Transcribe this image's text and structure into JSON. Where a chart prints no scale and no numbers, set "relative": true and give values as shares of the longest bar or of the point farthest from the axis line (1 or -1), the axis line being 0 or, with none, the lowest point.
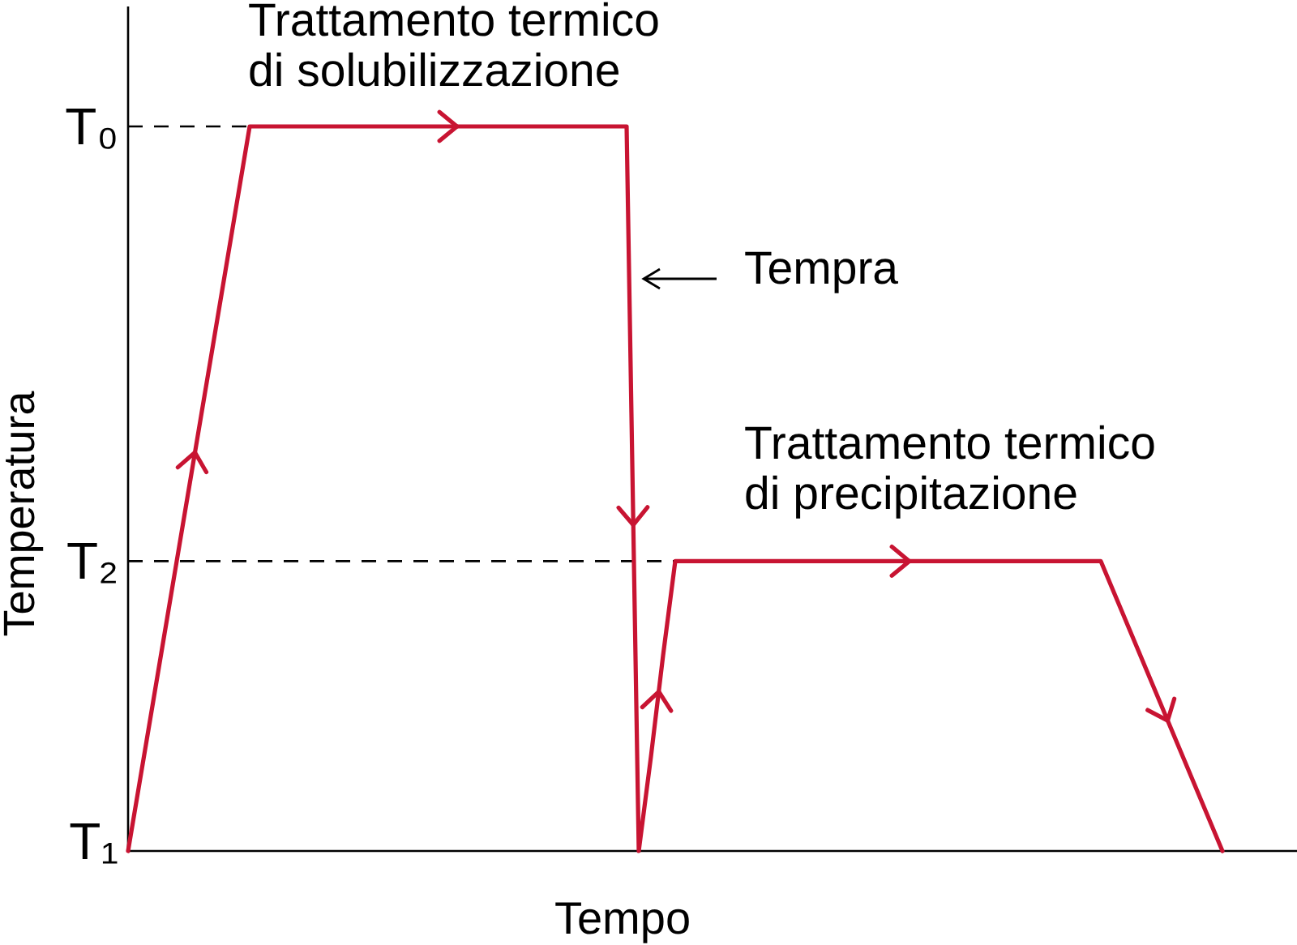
{
  "chart_data": {
    "type": "line",
    "xlabel": "Tempo",
    "ylabel": "Temperatura",
    "relative": true,
    "categories": [
      null,
      null,
      null,
      null,
      null,
      null,
      null,
      null,
      null,
      null,
      null,
      null,
      null,
      null,
      null,
      null,
      null,
      null,
      null,
      null,
      null,
      null,
      null,
      null,
      null,
      null,
      null,
      null,
      null,
      null,
      null,
      null,
      null,
      null,
      null,
      null,
      null,
      null,
      null,
      null,
      null,
      null,
      null,
      null,
      null,
      null,
      null,
      null,
      null,
      null,
      null,
      null,
      null,
      null,
      null,
      null,
      null,
      null,
      null,
      null,
      null,
      null,
      null,
      null,
      null,
      null,
      null,
      null,
      null,
      null,
      null,
      null,
      null,
      null,
      null,
      null,
      null,
      null,
      null,
      null,
      null,
      null,
      null,
      null,
      null,
      null,
      null,
      null,
      null,
      null,
      null
    ],
    "series": [
      {
        "color": "#c81432",
        "values": [
          0,
          0.1,
          0.2,
          0.3,
          0.4,
          0.5,
          0.6,
          0.7,
          0.8,
          0.9,
          1,
          1,
          1,
          1,
          1,
          1,
          1,
          1,
          1,
          1,
          1,
          1,
          1,
          1,
          1,
          1,
          1,
          1,
          1,
          1,
          1,
          1,
          1,
          1,
          1,
          1,
          1,
          1,
          1,
          1,
          1,
          1,
          0,
          0.13,
          0.27,
          0.4,
          0.4,
          0.4,
          0.4,
          0.4,
          0.4,
          0.4,
          0.4,
          0.4,
          0.4,
          0.4,
          0.4,
          0.4,
          0.4,
          0.4,
          0.4,
          0.4,
          0.4,
          0.4,
          0.4,
          0.4,
          0.4,
          0.4,
          0.4,
          0.4,
          0.4,
          0.4,
          0.4,
          0.4,
          0.4,
          0.4,
          0.4,
          0.4,
          0.4,
          0.4,
          0.4,
          0.36,
          0.32,
          0.28,
          0.24,
          0.2,
          0.16,
          0.12,
          0.08,
          0.04,
          0
        ]
      }
    ],
    "ref_lines": [
      {
        "axis": "y",
        "value": 1,
        "label": "T₀",
        "color": "#000000",
        "line_style": "dashed"
      },
      {
        "axis": "y",
        "value": 0.4,
        "label": "T₂",
        "color": "#000000",
        "line_style": "dashed"
      }
    ],
    "annotations": [
      "Trattamento termico\ndi solubilizzazione",
      "Tempra",
      "Trattamento termico\ndi precipitazione",
      "T₁"
    ]
  }
}
